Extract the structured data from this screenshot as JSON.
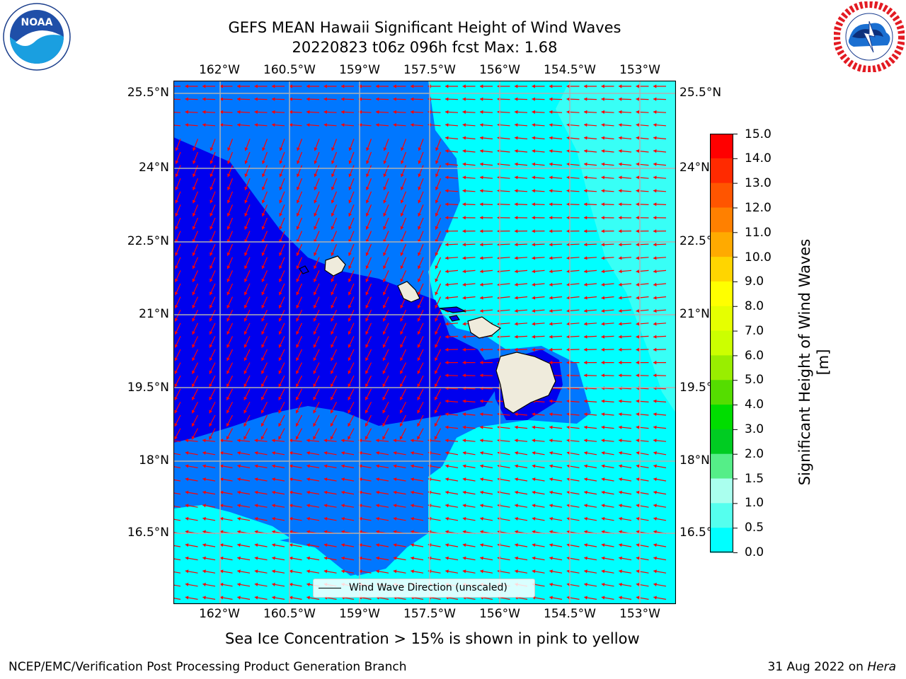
{
  "title_line1": "GEFS MEAN Hawaii Significant Height of Wind Waves",
  "title_line2": "20220823 t06z 096h fcst   Max: 1.68",
  "lon_ticks": [
    "162°W",
    "160.5°W",
    "159°W",
    "157.5°W",
    "156°W",
    "154.5°W",
    "153°W"
  ],
  "lat_ticks": [
    "25.5°N",
    "24°N",
    "22.5°N",
    "21°N",
    "19.5°N",
    "18°N",
    "16.5°N"
  ],
  "colorbar": {
    "label": "Significant Height of Wind Waves [m]",
    "ticks": [
      "15.0",
      "14.0",
      "13.0",
      "12.0",
      "11.0",
      "10.0",
      "9.0",
      "8.0",
      "7.0",
      "6.0",
      "5.0",
      "4.0",
      "3.0",
      "2.0",
      "1.5",
      "1.0",
      "0.5",
      "0.0"
    ],
    "colors_top_to_bottom": [
      "#ff0000",
      "#ff2a00",
      "#ff5500",
      "#ff8000",
      "#ffaa00",
      "#ffd500",
      "#ffff00",
      "#e6ff00",
      "#ccff00",
      "#99ee00",
      "#55dd00",
      "#00dd00",
      "#00cc22",
      "#55ee88",
      "#aaffee",
      "#55ffee",
      "#00ffff",
      "#0080ff",
      "#0000ff"
    ]
  },
  "legend_label": "Wind Wave Direction (unscaled)",
  "ice_note": "Sea Ice Concentration > 15% is shown in pink to yellow",
  "footer_left": "NCEP/EMC/Verification Post Processing Product Generation Branch",
  "footer_date": "31 Aug 2022 on ",
  "footer_host": "Hera",
  "colors": {
    "deep_blue": "#0000ee",
    "mid_blue": "#0077ff",
    "cyan": "#00ffff",
    "light_cyan": "#66ffee",
    "land": "#efebdc",
    "arrows": "#ff0000"
  },
  "logos": {
    "left": "NOAA",
    "right": "NATIONAL WEATHER SERVICE"
  }
}
